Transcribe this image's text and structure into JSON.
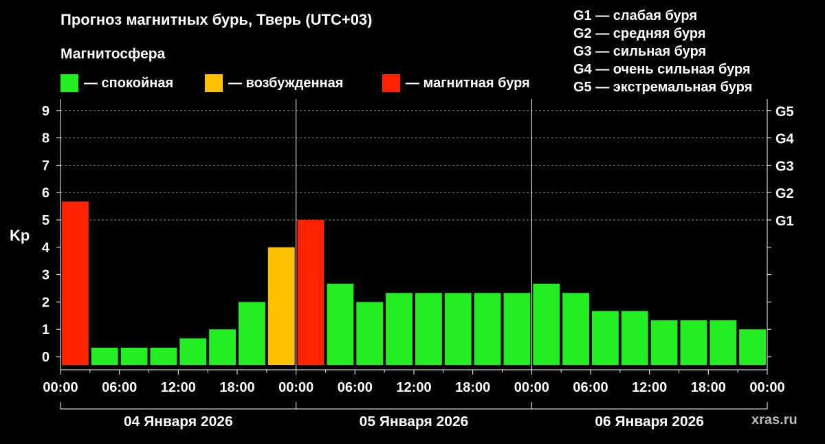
{
  "title": "Прогноз магнитных бурь, Тверь (UTC+03)",
  "legend": {
    "heading": "Магнитосфера",
    "items": [
      {
        "label": "— спокойная",
        "color": "#22ee22"
      },
      {
        "label": "— возбужденная",
        "color": "#ffc000"
      },
      {
        "label": "— магнитная буря",
        "color": "#ff2200"
      }
    ]
  },
  "g_levels": [
    "G1 — слабая буря",
    "G2 — средняя буря",
    "G3 — сильная буря",
    "G4 — очень сильная буря",
    "G5 — экстремальная буря"
  ],
  "watermark": "xras.ru",
  "colors": {
    "quiet": "#22ee22",
    "active": "#ffc000",
    "storm": "#ff2200",
    "background": "#000000",
    "grid": "#888888"
  },
  "chart_data": {
    "type": "bar",
    "ylabel": "Kp",
    "ylim": [
      0,
      9
    ],
    "yticks": [
      "0",
      "1",
      "2",
      "3",
      "4",
      "5",
      "6",
      "7",
      "8",
      "9"
    ],
    "right_ticks": [
      "G1",
      "G2",
      "G3",
      "G4",
      "G5"
    ],
    "right_tick_values": [
      5,
      6,
      7,
      8,
      9
    ],
    "grid": "horizontal dashed from 5 to 9",
    "xtick_labels": [
      "00:00",
      "06:00",
      "12:00",
      "18:00",
      "00:00",
      "06:00",
      "12:00",
      "18:00",
      "00:00",
      "06:00",
      "12:00",
      "18:00",
      "00:00"
    ],
    "days": [
      "04 Января 2026",
      "05 Января 2026",
      "06 Января 2026"
    ],
    "interval_hours": 3,
    "values": [
      5.67,
      0.33,
      0.33,
      0.33,
      0.67,
      1.0,
      2.0,
      4.0,
      5.0,
      2.67,
      2.0,
      2.33,
      2.33,
      2.33,
      2.33,
      2.33,
      2.67,
      2.33,
      1.67,
      1.67,
      1.33,
      1.33,
      1.33,
      1.0
    ],
    "levels": [
      "storm",
      "quiet",
      "quiet",
      "quiet",
      "quiet",
      "quiet",
      "quiet",
      "active",
      "storm",
      "quiet",
      "quiet",
      "quiet",
      "quiet",
      "quiet",
      "quiet",
      "quiet",
      "quiet",
      "quiet",
      "quiet",
      "quiet",
      "quiet",
      "quiet",
      "quiet",
      "quiet"
    ]
  }
}
